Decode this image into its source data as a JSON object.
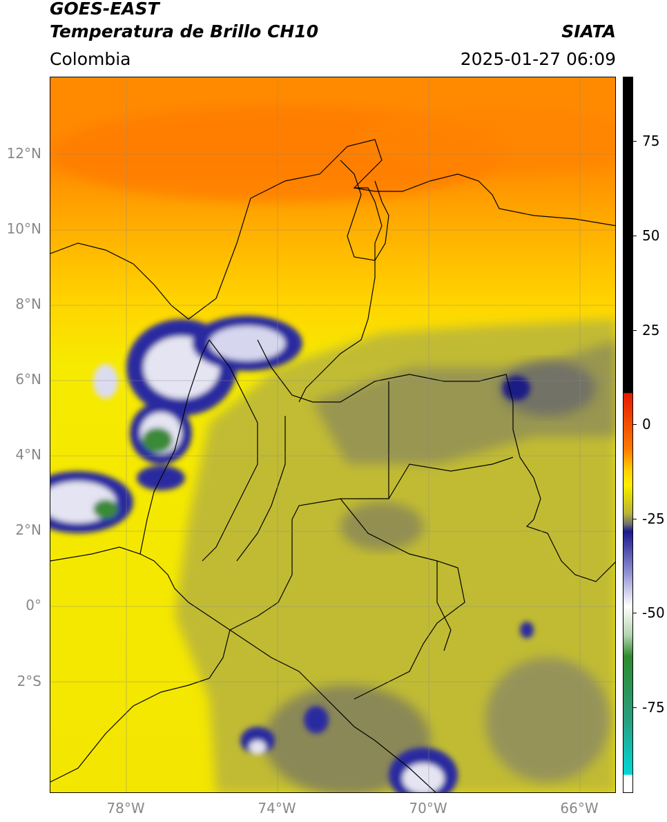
{
  "header": {
    "title_line1": "GOES-EAST",
    "title_line2": "Temperatura de Brillo CH10",
    "brand": "SIATA",
    "region": "Colombia",
    "timestamp": "2025-01-27 06:09"
  },
  "axes": {
    "lat_labels": [
      "12°N",
      "10°N",
      "8°N",
      "6°N",
      "4°N",
      "2°N",
      "0°",
      "2°S"
    ],
    "lon_labels": [
      "78°W",
      "74°W",
      "70°W",
      "66°W"
    ]
  },
  "colorbar": {
    "labels": [
      "75",
      "50",
      "25",
      "0",
      "-25",
      "-50",
      "-75"
    ],
    "colors": {
      "black": "#000000",
      "red": "#e21b00",
      "orange": "#ff7a00",
      "yellow": "#ffee00",
      "olive": "#b9b43a",
      "gray": "#6e6e70",
      "navy": "#1a1a8c",
      "white": "#ffffff",
      "green": "#2e8a2e",
      "cyan": "#00d8d8"
    }
  },
  "map_colors": {
    "warm_orange": "#ff8800",
    "orange_yellow": "#ffb000",
    "yellow": "#f7e800",
    "olive": "#b5b23e",
    "gray_olive": "#8e8c56",
    "gray": "#6b6b6b",
    "navy": "#1c1c86",
    "cloud_white": "#e9e9f4",
    "green": "#3f8a3a"
  }
}
